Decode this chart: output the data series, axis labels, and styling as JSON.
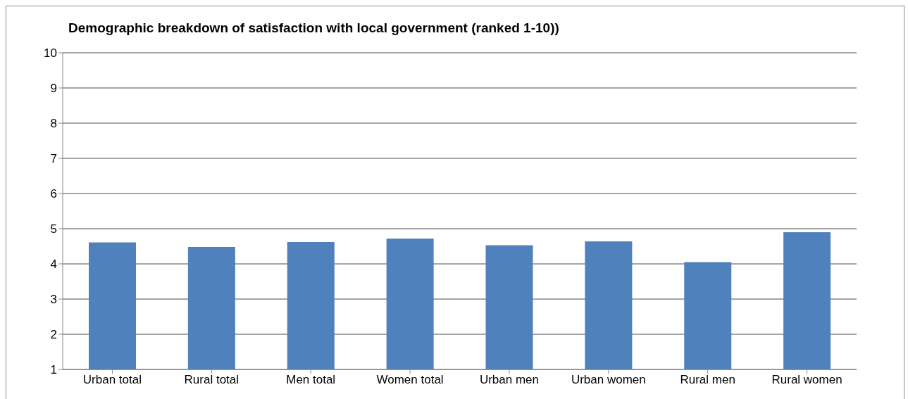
{
  "chart_data": {
    "type": "bar",
    "title": "Demographic breakdown of satisfaction with local government (ranked 1-10))",
    "categories": [
      "Urban total",
      "Rural total",
      "Men total",
      "Women total",
      "Urban men",
      "Urban women",
      "Rural men",
      "Rural women"
    ],
    "values": [
      4.61,
      4.48,
      4.62,
      4.72,
      4.53,
      4.64,
      4.05,
      4.9
    ],
    "color": "#4f81bd",
    "ylim": [
      1,
      10
    ],
    "yticks": [
      1,
      2,
      3,
      4,
      5,
      6,
      7,
      8,
      9,
      10
    ],
    "grid": "y"
  }
}
